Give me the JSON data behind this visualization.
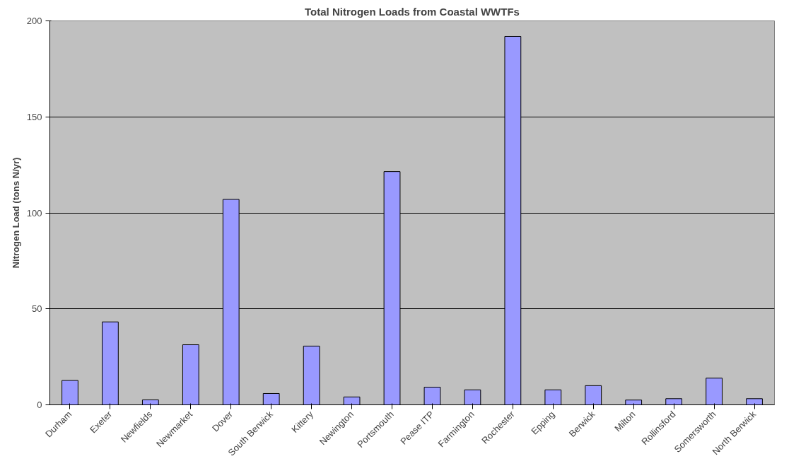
{
  "chart_data": {
    "type": "bar",
    "title": "Total Nitrogen Loads from Coastal WWTFs",
    "ylabel": "Nitrogen Load (tons N/yr)",
    "categories": [
      "Durham",
      "Exeter",
      "Newfields",
      "Newmarket",
      "Dover",
      "South Berwick",
      "Kittery",
      "Newington",
      "Portsmouth",
      "Pease ITP",
      "Farmington",
      "Rochester",
      "Epping",
      "Berwick",
      "Milton",
      "Rollinsford",
      "Somersworth",
      "North Berwick"
    ],
    "values": [
      12.7,
      43.2,
      2.6,
      31.3,
      107,
      5.9,
      30.6,
      4.1,
      121.5,
      9.2,
      7.8,
      191.9,
      7.8,
      10,
      2.5,
      3.2,
      13.9,
      3.2
    ],
    "color": "#9999ff",
    "ylim": [
      0,
      200
    ],
    "yticks": [
      0,
      50,
      100,
      150,
      200
    ],
    "grid": "y"
  }
}
